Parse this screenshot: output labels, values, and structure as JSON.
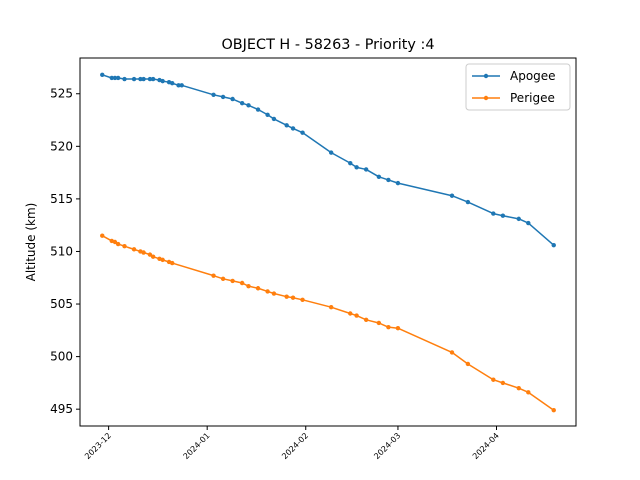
{
  "chart_data": {
    "type": "line",
    "title": "OBJECT H - 58263 - Priority :4",
    "xlabel": "",
    "ylabel": "Altitude (km)",
    "x_type": "date",
    "xlim": [
      "2023-11-22",
      "2024-04-26"
    ],
    "ylim": [
      493.4,
      528.4
    ],
    "x_ticks": [
      "2023-12-01",
      "2024-01-01",
      "2024-02-01",
      "2024-03-01",
      "2024-04-01"
    ],
    "x_tick_labels": [
      "2023-12",
      "2024-01",
      "2024-02",
      "2024-03",
      "2024-04"
    ],
    "y_ticks": [
      495,
      500,
      505,
      510,
      515,
      520,
      525
    ],
    "y_tick_labels": [
      "495",
      "500",
      "505",
      "510",
      "515",
      "520",
      "525"
    ],
    "grid": false,
    "legend_position": "top-right",
    "series": [
      {
        "name": "Apogee",
        "color": "#1f77b4",
        "points": [
          [
            "2023-11-29",
            526.8
          ],
          [
            "2023-12-02",
            526.5
          ],
          [
            "2023-12-03",
            526.5
          ],
          [
            "2023-12-04",
            526.5
          ],
          [
            "2023-12-06",
            526.4
          ],
          [
            "2023-12-09",
            526.4
          ],
          [
            "2023-12-11",
            526.4
          ],
          [
            "2023-12-12",
            526.4
          ],
          [
            "2023-12-14",
            526.4
          ],
          [
            "2023-12-15",
            526.4
          ],
          [
            "2023-12-17",
            526.3
          ],
          [
            "2023-12-18",
            526.2
          ],
          [
            "2023-12-20",
            526.1
          ],
          [
            "2023-12-21",
            526.0
          ],
          [
            "2023-12-23",
            525.8
          ],
          [
            "2023-12-24",
            525.8
          ],
          [
            "2024-01-03",
            524.9
          ],
          [
            "2024-01-06",
            524.7
          ],
          [
            "2024-01-09",
            524.5
          ],
          [
            "2024-01-12",
            524.1
          ],
          [
            "2024-01-14",
            523.9
          ],
          [
            "2024-01-17",
            523.5
          ],
          [
            "2024-01-20",
            523.0
          ],
          [
            "2024-01-22",
            522.6
          ],
          [
            "2024-01-26",
            522.0
          ],
          [
            "2024-01-28",
            521.7
          ],
          [
            "2024-01-31",
            521.3
          ],
          [
            "2024-02-09",
            519.4
          ],
          [
            "2024-02-15",
            518.4
          ],
          [
            "2024-02-17",
            518.0
          ],
          [
            "2024-02-20",
            517.8
          ],
          [
            "2024-02-24",
            517.1
          ],
          [
            "2024-02-27",
            516.8
          ],
          [
            "2024-03-01",
            516.5
          ],
          [
            "2024-03-18",
            515.3
          ],
          [
            "2024-03-23",
            514.7
          ],
          [
            "2024-03-31",
            513.6
          ],
          [
            "2024-04-03",
            513.4
          ],
          [
            "2024-04-08",
            513.1
          ],
          [
            "2024-04-11",
            512.7
          ],
          [
            "2024-04-19",
            510.6
          ]
        ]
      },
      {
        "name": "Perigee",
        "color": "#ff7f0e",
        "points": [
          [
            "2023-11-29",
            511.5
          ],
          [
            "2023-12-02",
            511.0
          ],
          [
            "2023-12-03",
            510.9
          ],
          [
            "2023-12-04",
            510.7
          ],
          [
            "2023-12-06",
            510.5
          ],
          [
            "2023-12-09",
            510.2
          ],
          [
            "2023-12-11",
            510.0
          ],
          [
            "2023-12-12",
            509.9
          ],
          [
            "2023-12-14",
            509.7
          ],
          [
            "2023-12-15",
            509.5
          ],
          [
            "2023-12-17",
            509.3
          ],
          [
            "2023-12-18",
            509.2
          ],
          [
            "2023-12-20",
            509.0
          ],
          [
            "2023-12-21",
            508.9
          ],
          [
            "2024-01-03",
            507.7
          ],
          [
            "2024-01-06",
            507.4
          ],
          [
            "2024-01-09",
            507.2
          ],
          [
            "2024-01-12",
            507.0
          ],
          [
            "2024-01-14",
            506.7
          ],
          [
            "2024-01-17",
            506.5
          ],
          [
            "2024-01-20",
            506.2
          ],
          [
            "2024-01-22",
            506.0
          ],
          [
            "2024-01-26",
            505.7
          ],
          [
            "2024-01-28",
            505.6
          ],
          [
            "2024-01-31",
            505.4
          ],
          [
            "2024-02-09",
            504.7
          ],
          [
            "2024-02-15",
            504.1
          ],
          [
            "2024-02-17",
            503.9
          ],
          [
            "2024-02-20",
            503.5
          ],
          [
            "2024-02-24",
            503.2
          ],
          [
            "2024-02-27",
            502.8
          ],
          [
            "2024-03-01",
            502.7
          ],
          [
            "2024-03-18",
            500.4
          ],
          [
            "2024-03-23",
            499.3
          ],
          [
            "2024-03-31",
            497.8
          ],
          [
            "2024-04-03",
            497.5
          ],
          [
            "2024-04-08",
            497.0
          ],
          [
            "2024-04-11",
            496.6
          ],
          [
            "2024-04-19",
            494.9
          ]
        ]
      }
    ]
  }
}
